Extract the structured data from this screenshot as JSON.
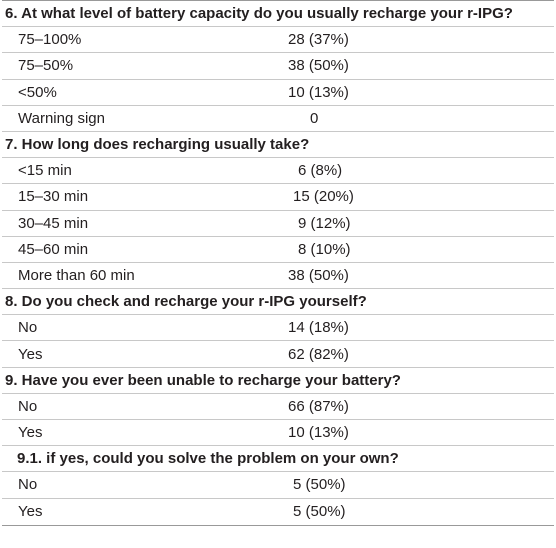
{
  "sections": [
    {
      "question": "6. At what level of battery capacity do you usually recharge your r-IPG?",
      "sub": false,
      "answers": [
        {
          "label": "75–100%",
          "value": "28 (37%)"
        },
        {
          "label": "75–50%",
          "value": "38 (50%)"
        },
        {
          "label": "<50%",
          "value": "10 (13%)"
        },
        {
          "label": "Warning sign",
          "value": "0"
        }
      ]
    },
    {
      "question": "7. How long does recharging usually take?",
      "sub": false,
      "answers": [
        {
          "label": "<15 min",
          "value": "6 (8%)"
        },
        {
          "label": "15–30 min",
          "value": "15 (20%)"
        },
        {
          "label": "30–45 min",
          "value": "9 (12%)"
        },
        {
          "label": "45–60 min",
          "value": "8 (10%)"
        },
        {
          "label": "More than 60 min",
          "value": "38 (50%)"
        }
      ]
    },
    {
      "question": "8. Do you check and recharge your r-IPG yourself?",
      "sub": false,
      "answers": [
        {
          "label": "No",
          "value": "14 (18%)"
        },
        {
          "label": "Yes",
          "value": "62 (82%)"
        }
      ]
    },
    {
      "question": "9. Have you ever been unable to recharge your battery?",
      "sub": false,
      "answers": [
        {
          "label": "No",
          "value": "66 (87%)"
        },
        {
          "label": "Yes",
          "value": "10 (13%)"
        }
      ]
    },
    {
      "question": "9.1. if yes, could you solve the problem on your own?",
      "sub": true,
      "answers": [
        {
          "label": "No",
          "value": "5 (50%)"
        },
        {
          "label": "Yes",
          "value": "5 (50%)"
        }
      ]
    }
  ]
}
